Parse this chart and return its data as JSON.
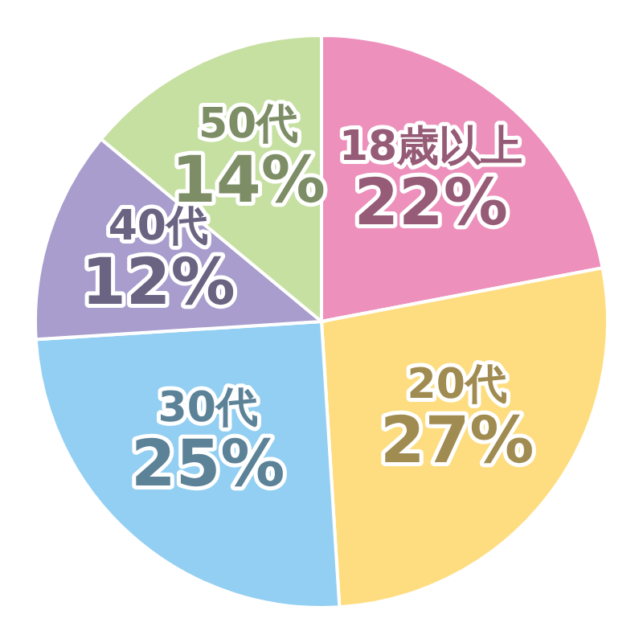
{
  "chart_data": {
    "type": "pie",
    "categories": [
      "18歳以上",
      "20代",
      "30代",
      "40代",
      "50代"
    ],
    "values": [
      22,
      27,
      25,
      12,
      14
    ],
    "colors": [
      "#ee90bc",
      "#fedd80",
      "#92cff2",
      "#a89dcd",
      "#c6e0a2"
    ],
    "value_labels": [
      "22%",
      "27%",
      "25%",
      "12%",
      "14%"
    ]
  }
}
